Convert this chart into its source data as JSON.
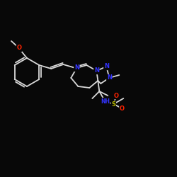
{
  "bg_color": "#080808",
  "bond_color": "#d8d8d8",
  "atom_colors": {
    "N": "#3333ff",
    "O": "#ff2200",
    "S": "#bbbb00",
    "C": "#d8d8d8",
    "H": "#d8d8d8"
  },
  "bond_width": 1.3,
  "font_size_atom": 6.0,
  "figsize": [
    2.5,
    2.5
  ],
  "dpi": 100
}
